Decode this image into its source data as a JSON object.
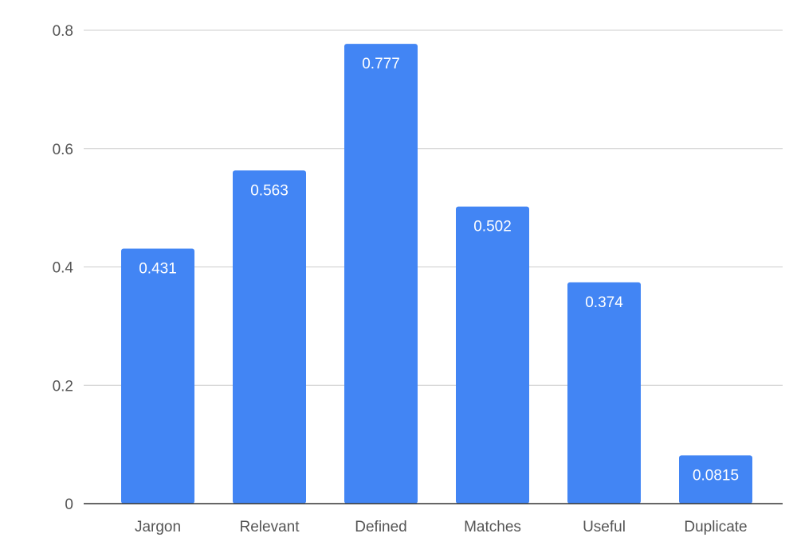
{
  "chart_data": {
    "type": "bar",
    "title": "",
    "xlabel": "",
    "ylabel": "",
    "categories": [
      "Jargon",
      "Relevant",
      "Defined",
      "Matches",
      "Useful",
      "Duplicate"
    ],
    "values": [
      0.431,
      0.563,
      0.777,
      0.502,
      0.374,
      0.0815
    ],
    "data_labels": [
      "0.431",
      "0.563",
      "0.777",
      "0.502",
      "0.374",
      "0.0815"
    ],
    "ylim": [
      0,
      0.8
    ],
    "yticks": [
      0,
      0.2,
      0.4,
      0.6,
      0.8
    ],
    "ytick_labels": [
      "0",
      "0.2",
      "0.4",
      "0.6",
      "0.8"
    ],
    "grid": true,
    "legend": "none",
    "bar_color": "#4285f4"
  }
}
